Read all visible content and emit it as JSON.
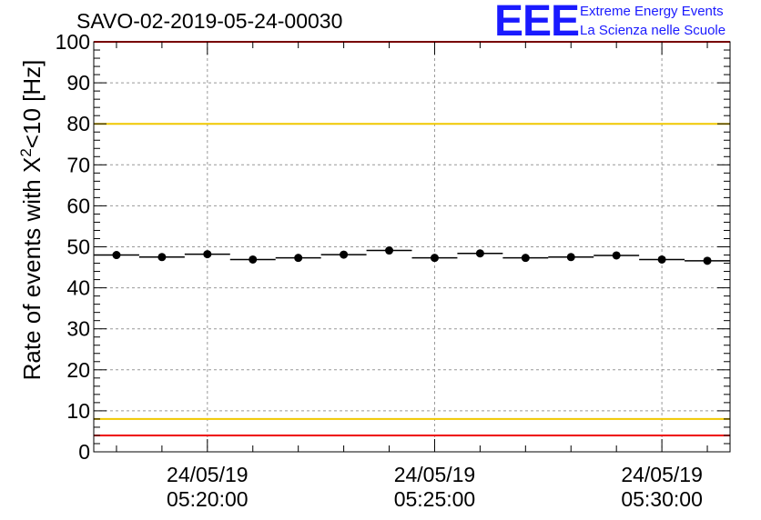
{
  "chart_data": {
    "type": "scatter",
    "title": "SAVO-02-2019-05-24-00030",
    "ylabel_pre": "Rate of events with X",
    "ylabel_sup": "2",
    "ylabel_post": "<10 [Hz]",
    "ylim": [
      0,
      100
    ],
    "yticks": [
      "0",
      "10",
      "20",
      "30",
      "40",
      "50",
      "60",
      "70",
      "80",
      "90",
      "100"
    ],
    "xlim_min": [
      17.5,
      31.5
    ],
    "x_ticks": [
      {
        "minute": 20,
        "date": "24/05/19",
        "time": "05:20:00"
      },
      {
        "minute": 25,
        "date": "24/05/19",
        "time": "05:25:00"
      },
      {
        "minute": 30,
        "date": "24/05/19",
        "time": "05:30:00"
      }
    ],
    "points": [
      {
        "x": 18.0,
        "y": 48.0
      },
      {
        "x": 19.0,
        "y": 47.5
      },
      {
        "x": 20.0,
        "y": 48.2
      },
      {
        "x": 21.0,
        "y": 46.9
      },
      {
        "x": 22.0,
        "y": 47.3
      },
      {
        "x": 23.0,
        "y": 48.1
      },
      {
        "x": 24.0,
        "y": 49.1
      },
      {
        "x": 25.0,
        "y": 47.3
      },
      {
        "x": 26.0,
        "y": 48.4
      },
      {
        "x": 27.0,
        "y": 47.3
      },
      {
        "x": 28.0,
        "y": 47.5
      },
      {
        "x": 29.0,
        "y": 47.9
      },
      {
        "x": 30.0,
        "y": 46.9
      },
      {
        "x": 31.0,
        "y": 46.6
      }
    ],
    "bin_width": 1.0,
    "threshold_lines": [
      {
        "y": 100,
        "color": "#ee0000"
      },
      {
        "y": 80,
        "color": "#f0c800"
      },
      {
        "y": 8,
        "color": "#f0c800"
      },
      {
        "y": 4,
        "color": "#ee0000"
      }
    ],
    "grid": true
  },
  "logo": {
    "mark": "EEE",
    "line1": "Extreme Energy Events",
    "line2": "La Scienza nelle Scuole"
  }
}
